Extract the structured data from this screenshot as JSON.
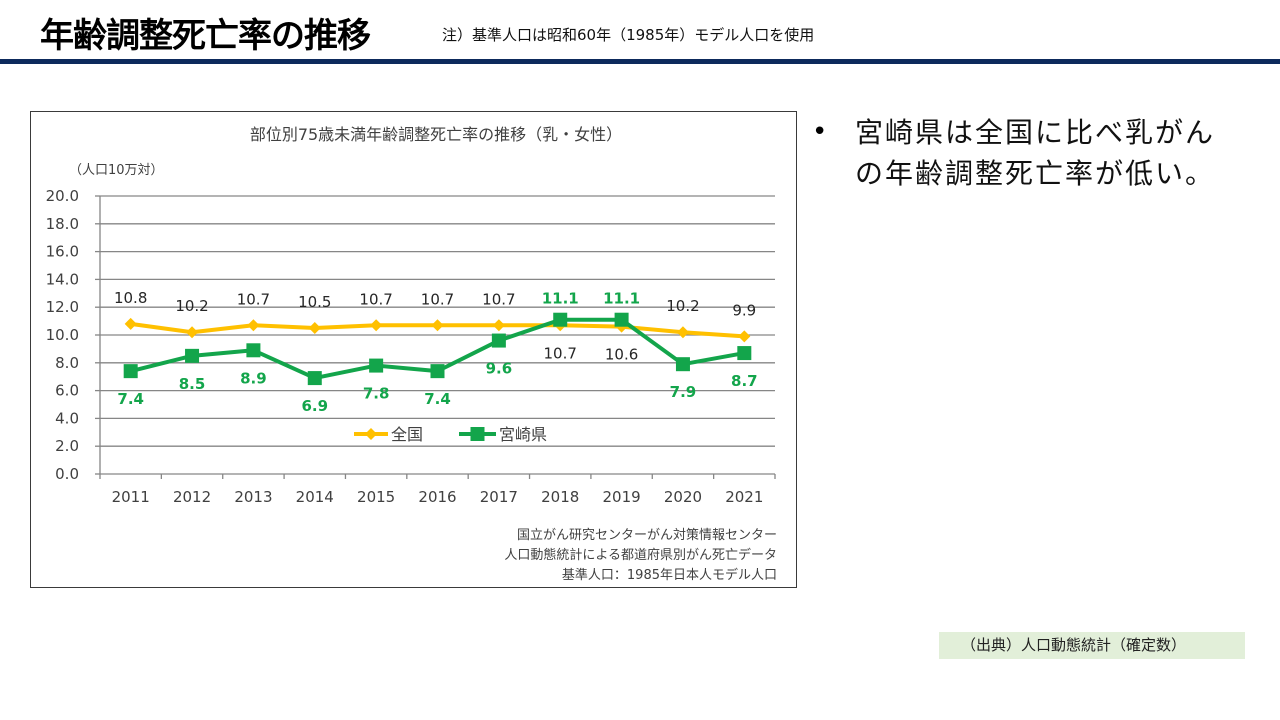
{
  "header": {
    "title": "年齢調整死亡率の推移",
    "note": "注）基準人口は昭和60年（1985年）モデル人口を使用"
  },
  "bullets": [
    {
      "marker": "•",
      "text": "宮崎県は全国に比べ乳がんの年齢調整死亡率が低い。"
    }
  ],
  "footer": {
    "source": "（出典）人口動態統計（確定数）"
  },
  "chart_data": {
    "type": "line",
    "title": "部位別75歳未満年齢調整死亡率の推移（乳・女性）",
    "ylabel": "（人口10万対）",
    "xlabel": "",
    "categories": [
      "2011",
      "2012",
      "2013",
      "2014",
      "2015",
      "2016",
      "2017",
      "2018",
      "2019",
      "2020",
      "2021"
    ],
    "series": [
      {
        "name": "全国",
        "color": "#FFC000",
        "marker": "diamond",
        "label_color": "#262626",
        "values": [
          10.8,
          10.2,
          10.7,
          10.5,
          10.7,
          10.7,
          10.7,
          10.7,
          10.6,
          10.2,
          9.9
        ]
      },
      {
        "name": "宮崎県",
        "color": "#13A54B",
        "marker": "square",
        "label_color": "#13A54B",
        "values": [
          7.4,
          8.5,
          8.9,
          6.9,
          7.8,
          7.4,
          9.6,
          11.1,
          11.1,
          7.9,
          8.7
        ]
      }
    ],
    "ylim": [
      0,
      20
    ],
    "ytick_labels": [
      "0.0",
      "2.0",
      "4.0",
      "6.0",
      "8.0",
      "10.0",
      "12.0",
      "14.0",
      "16.0",
      "18.0",
      "20.0"
    ],
    "grid": true,
    "data_labels": true,
    "legend_position": "bottom",
    "source_notes": [
      "国立がん研究センターがん対策情報センター",
      "人口動態統計による都道府県別がん死亡データ",
      "基準人口：1985年日本人モデル人口"
    ],
    "colors": {
      "grid": "#868686",
      "text": "#404040"
    }
  }
}
